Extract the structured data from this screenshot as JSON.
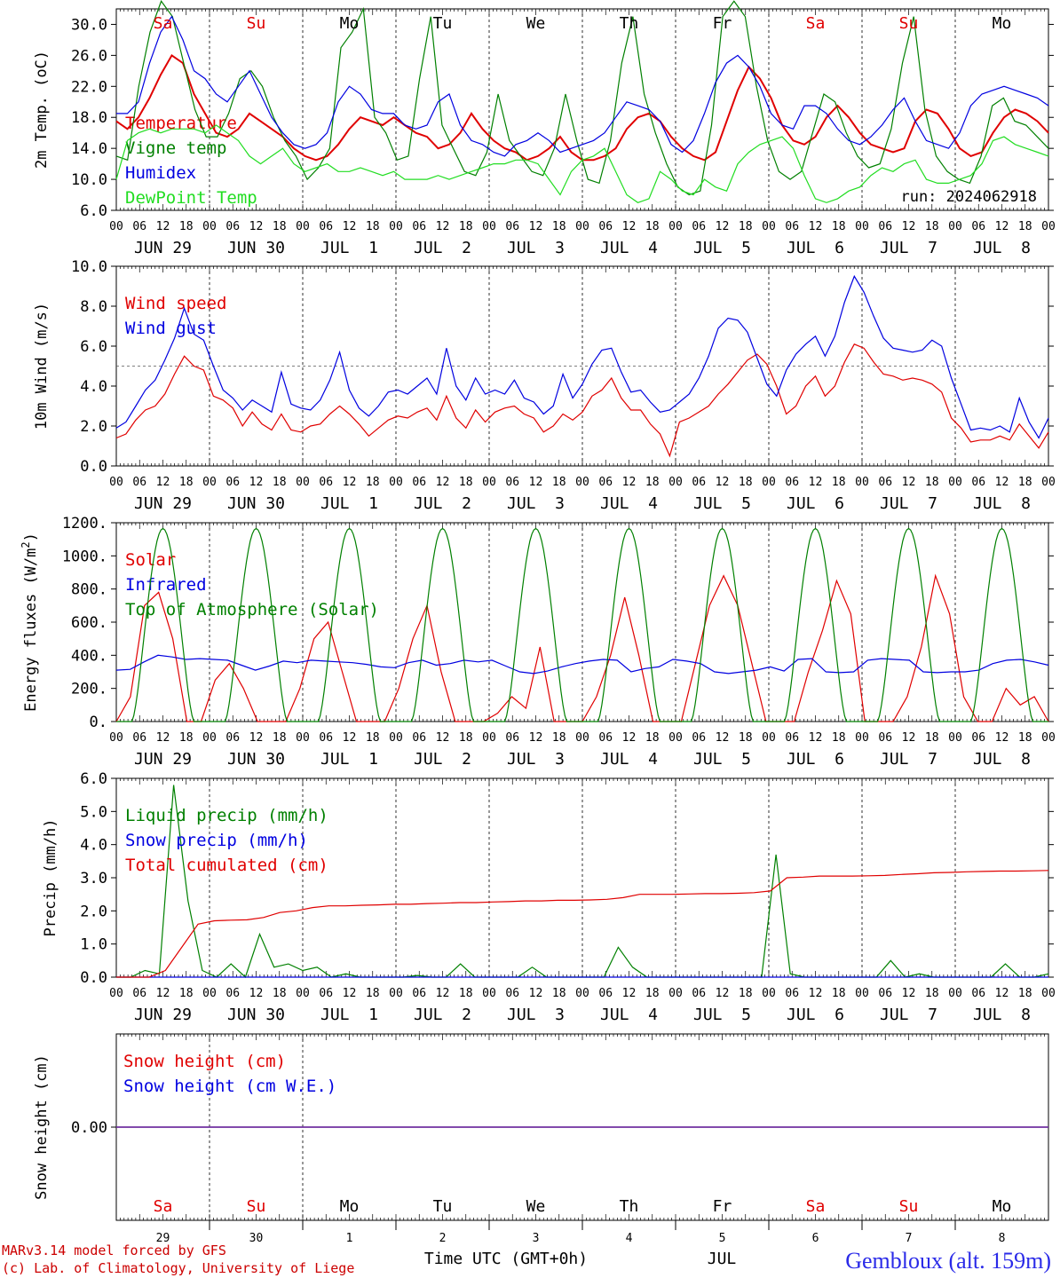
{
  "run_label": "run: 2024062918",
  "dates": [
    "JUN 29",
    "JUN 30",
    "JUL  1",
    "JUL  2",
    "JUL  3",
    "JUL  4",
    "JUL  5",
    "JUL  6",
    "JUL  7",
    "JUL  8"
  ],
  "weekdays": [
    "Sa",
    "Su",
    "Mo",
    "Tu",
    "We",
    "Th",
    "Fr",
    "Sa",
    "Su",
    "Mo"
  ],
  "weekend_flags": [
    true,
    true,
    false,
    false,
    false,
    false,
    false,
    true,
    true,
    false
  ],
  "day_numbers": [
    "29",
    "30",
    "1",
    "2",
    "3",
    "4",
    "5",
    "6",
    "7",
    "8"
  ],
  "hour_labels": [
    "00",
    "06",
    "12",
    "18"
  ],
  "x_axis_title": "Time UTC (GMT+0h)",
  "month_label": "JUL",
  "station": "Gembloux (alt. 159m)",
  "footer_lines": [
    "MARv3.14 model forced by GFS",
    "(c) Lab. of Climatology, University of Liege"
  ],
  "colors": {
    "red": "#e00000",
    "green": "#008000",
    "blue": "#0000e0",
    "lime": "#22dd22",
    "purple": "#7030a0"
  },
  "chart_data": [
    {
      "type": "line",
      "ylabel": "2m Temp. (oC)",
      "ylim": [
        6,
        32
      ],
      "yticks": [
        6,
        10,
        14,
        18,
        22,
        26,
        30
      ],
      "ytick_labels": [
        "6.0",
        "10.0",
        "14.0",
        "18.0",
        "22.0",
        "26.0",
        "30.0"
      ],
      "legend_placement": "top-left",
      "series": [
        {
          "name": "Temperature",
          "color": "red",
          "values": [
            17.5,
            16.5,
            18,
            20.5,
            23.5,
            26,
            25,
            21,
            18.5,
            16,
            15.5,
            16.5,
            18.5,
            17.5,
            16.5,
            15.5,
            14,
            13,
            12.5,
            13,
            14.5,
            16.5,
            18,
            17.5,
            17,
            18,
            17,
            16,
            15.5,
            14,
            14.5,
            16,
            18.5,
            16.5,
            15,
            14,
            13.5,
            12.5,
            13,
            14,
            15.5,
            13.5,
            12.5,
            12.5,
            13,
            14,
            16.5,
            18,
            18.5,
            17.5,
            15.5,
            14,
            13,
            12.5,
            13.5,
            17.5,
            21.5,
            24.5,
            23,
            20.5,
            17,
            15,
            14.5,
            15.5,
            18,
            19.5,
            18,
            16,
            14.5,
            14,
            13.5,
            14,
            17.5,
            19,
            18.5,
            16.5,
            14,
            13,
            13.5,
            16,
            18,
            19,
            18.5,
            17.5,
            16
          ]
        },
        {
          "name": "Vigne temp",
          "color": "green",
          "values": [
            13,
            12.5,
            22,
            29,
            33,
            31,
            25,
            19,
            15.5,
            15.5,
            18.5,
            23,
            24,
            22,
            18,
            15,
            13,
            10,
            11.5,
            14,
            27,
            29,
            32,
            18,
            16,
            12.5,
            13,
            23,
            31,
            17,
            14,
            11,
            10.5,
            13.5,
            21,
            15,
            13,
            11,
            10.5,
            14,
            21,
            15,
            10,
            9.5,
            15,
            25,
            31,
            21,
            16,
            12,
            9,
            8,
            8.5,
            17,
            31,
            33,
            31,
            22,
            15,
            11,
            10,
            11,
            16,
            21,
            20,
            16,
            13,
            11.5,
            12,
            16.5,
            25,
            31,
            19,
            13,
            11,
            10,
            9.5,
            13,
            19.5,
            20.5,
            17.5,
            17,
            15.5,
            14
          ]
        },
        {
          "name": "Humidex",
          "color": "blue",
          "values": [
            18.5,
            18.5,
            20,
            25,
            29,
            31,
            28,
            24,
            23,
            21,
            20,
            22,
            24,
            21,
            18,
            16,
            14.5,
            14,
            14.5,
            16,
            20,
            22,
            21,
            19,
            18.5,
            18.5,
            17,
            16.5,
            17,
            20,
            21,
            17,
            15,
            14.5,
            13.5,
            13,
            14.5,
            15,
            16,
            15,
            13.5,
            14,
            14.5,
            15,
            16,
            18,
            20,
            19.5,
            19,
            17.5,
            14.5,
            13.5,
            15,
            18.5,
            22.5,
            25,
            26,
            24.5,
            22,
            18.5,
            17,
            16.5,
            19.5,
            19.5,
            18.5,
            16.5,
            15,
            14.5,
            15.5,
            17,
            19,
            20.5,
            17.5,
            15,
            14.5,
            14,
            16,
            19.5,
            21,
            21.5,
            22,
            21.5,
            21,
            20.5,
            19.5
          ]
        },
        {
          "name": "DewPoint Temp",
          "color": "lime",
          "values": [
            10,
            15,
            16,
            16.5,
            16,
            16.5,
            16.5,
            16.5,
            16,
            17,
            16,
            15,
            13,
            12,
            13,
            14,
            12,
            11,
            11.5,
            12,
            11,
            11,
            11.5,
            11,
            10.5,
            11,
            10,
            10,
            10,
            10.5,
            10,
            10.5,
            11,
            11.5,
            12,
            12,
            12.5,
            12.5,
            12,
            10,
            8,
            11,
            12.5,
            13,
            14,
            11,
            8,
            7,
            7.5,
            11,
            10,
            8.5,
            8,
            10,
            9,
            8.5,
            12,
            13.5,
            14.5,
            15,
            15.5,
            14,
            10.5,
            7.5,
            7,
            7.5,
            8.5,
            9,
            10.5,
            11.5,
            11,
            12,
            12.5,
            10,
            9.5,
            9.5,
            10,
            10.5,
            12,
            15,
            15.5,
            14.5,
            14,
            13.5,
            13
          ]
        }
      ]
    },
    {
      "type": "line",
      "ylabel": "10m Wind (m/s)",
      "ylim": [
        0,
        10
      ],
      "yticks": [
        0,
        2,
        4,
        6,
        8,
        10
      ],
      "ytick_labels": [
        "0.0",
        "2.0",
        "4.0",
        "6.0",
        "8.0",
        "10.0"
      ],
      "reference_line": 5,
      "legend_placement": "top-left",
      "series": [
        {
          "name": "Wind speed",
          "color": "red",
          "values": [
            1.4,
            1.6,
            2.3,
            2.8,
            3,
            3.6,
            4.6,
            5.5,
            5,
            4.8,
            3.5,
            3.3,
            2.9,
            2,
            2.7,
            2.1,
            1.8,
            2.6,
            1.8,
            1.7,
            2,
            2.1,
            2.6,
            3,
            2.6,
            2.1,
            1.5,
            1.9,
            2.3,
            2.5,
            2.4,
            2.7,
            2.9,
            2.3,
            3.5,
            2.4,
            1.9,
            2.8,
            2.2,
            2.7,
            2.9,
            3,
            2.6,
            2.4,
            1.7,
            2,
            2.6,
            2.3,
            2.7,
            3.5,
            3.8,
            4.4,
            3.4,
            2.8,
            2.8,
            2.1,
            1.6,
            0.5,
            2.2,
            2.4,
            2.7,
            3,
            3.6,
            4.1,
            4.7,
            5.3,
            5.6,
            5.1,
            4,
            2.6,
            3,
            4,
            4.5,
            3.5,
            4,
            5.2,
            6.1,
            5.9,
            5.2,
            4.6,
            4.5,
            4.3,
            4.4,
            4.3,
            4.1,
            3.7,
            2.4,
            1.9,
            1.2,
            1.3,
            1.3,
            1.5,
            1.3,
            2.1,
            1.5,
            0.9,
            1.7
          ]
        },
        {
          "name": "Wind gust",
          "color": "blue",
          "values": [
            1.9,
            2.2,
            3,
            3.8,
            4.3,
            5.3,
            6.4,
            7.9,
            6.6,
            6.3,
            5,
            3.8,
            3.4,
            2.8,
            3.3,
            3,
            2.7,
            4.7,
            3.1,
            2.9,
            2.8,
            3.3,
            4.3,
            5.7,
            3.8,
            2.9,
            2.5,
            3,
            3.7,
            3.8,
            3.6,
            4,
            4.4,
            3.6,
            5.9,
            4,
            3.3,
            4.4,
            3.6,
            3.8,
            3.6,
            4.3,
            3.4,
            3.2,
            2.6,
            3,
            4.6,
            3.4,
            4.1,
            5.1,
            5.8,
            5.9,
            4.7,
            3.7,
            3.8,
            3.2,
            2.7,
            2.8,
            3.2,
            3.6,
            4.4,
            5.5,
            6.9,
            7.4,
            7.3,
            6.7,
            5.4,
            4.1,
            3.5,
            4.8,
            5.6,
            6.1,
            6.5,
            5.5,
            6.5,
            8.2,
            9.5,
            8.7,
            7.5,
            6.4,
            5.9,
            5.8,
            5.7,
            5.8,
            6.3,
            6,
            4.4,
            3.1,
            1.8,
            1.9,
            1.8,
            2,
            1.7,
            3.4,
            2.2,
            1.4,
            2.4
          ]
        }
      ]
    },
    {
      "type": "line",
      "ylabel": "Energy fluxes (W/m2)",
      "ylim": [
        0,
        1200
      ],
      "yticks": [
        0,
        200,
        400,
        600,
        800,
        1000,
        1200
      ],
      "ytick_labels": [
        "0.",
        "200.",
        "400.",
        "600.",
        "800.",
        "1000.",
        "1200."
      ],
      "legend_placement": "top-left",
      "series": [
        {
          "name": "Solar",
          "color": "red",
          "values": [
            0,
            150,
            700,
            780,
            500,
            0,
            0,
            250,
            350,
            200,
            0,
            0,
            0,
            200,
            500,
            600,
            300,
            0,
            0,
            0,
            200,
            500,
            700,
            300,
            0,
            0,
            0,
            50,
            150,
            80,
            450,
            0,
            0,
            0,
            150,
            400,
            750,
            400,
            0,
            0,
            0,
            350,
            700,
            880,
            700,
            350,
            0,
            0,
            0,
            300,
            550,
            850,
            650,
            0,
            0,
            0,
            150,
            450,
            880,
            650,
            150,
            0,
            0,
            200,
            100,
            150,
            0
          ]
        },
        {
          "name": "Infrared",
          "color": "blue",
          "values": [
            310,
            315,
            360,
            400,
            390,
            375,
            380,
            375,
            370,
            340,
            310,
            335,
            365,
            355,
            370,
            365,
            360,
            355,
            345,
            330,
            325,
            355,
            370,
            340,
            350,
            370,
            360,
            370,
            335,
            300,
            290,
            305,
            330,
            350,
            365,
            375,
            370,
            300,
            320,
            330,
            375,
            365,
            350,
            300,
            290,
            300,
            310,
            330,
            305,
            375,
            380,
            300,
            295,
            300,
            370,
            380,
            375,
            370,
            300,
            295,
            300,
            300,
            310,
            350,
            370,
            375,
            360,
            340
          ]
        },
        {
          "name": "Top of Atmosphere (Solar)",
          "color": "green",
          "values": [
            1165
          ]
        }
      ]
    },
    {
      "type": "line",
      "ylabel": "Precip (mm/h)",
      "ylim": [
        0,
        6
      ],
      "yticks": [
        0,
        1,
        2,
        3,
        4,
        5,
        6
      ],
      "ytick_labels": [
        "0.0",
        "1.0",
        "2.0",
        "3.0",
        "4.0",
        "5.0",
        "6.0"
      ],
      "legend_placement": "top-left",
      "series": [
        {
          "name": "Liquid precip (mm/h)",
          "color": "green",
          "values": [
            0,
            0,
            0.2,
            0.1,
            5.8,
            2.3,
            0.2,
            0,
            0.4,
            0,
            1.3,
            0.3,
            0.4,
            0.2,
            0.3,
            0,
            0.1,
            0,
            0,
            0,
            0,
            0.05,
            0,
            0,
            0.4,
            0,
            0,
            0,
            0,
            0.3,
            0,
            0,
            0,
            0,
            0,
            0.9,
            0.3,
            0,
            0,
            0,
            0,
            0,
            0,
            0,
            0,
            0,
            3.7,
            0.1,
            0,
            0,
            0,
            0,
            0,
            0,
            0.5,
            0,
            0.1,
            0,
            0,
            0,
            0,
            0,
            0.4,
            0,
            0,
            0.1
          ]
        },
        {
          "name": "Snow precip (mm/h)",
          "color": "blue",
          "values": [
            0
          ]
        },
        {
          "name": "Total cumulated (cm)",
          "color": "red",
          "values": [
            0,
            0,
            0,
            0.2,
            0.9,
            1.6,
            1.7,
            1.72,
            1.73,
            1.8,
            1.95,
            2.0,
            2.1,
            2.15,
            2.15,
            2.17,
            2.18,
            2.2,
            2.2,
            2.22,
            2.23,
            2.25,
            2.25,
            2.27,
            2.28,
            2.3,
            2.3,
            2.32,
            2.32,
            2.33,
            2.35,
            2.4,
            2.5,
            2.5,
            2.5,
            2.51,
            2.52,
            2.52,
            2.53,
            2.55,
            2.6,
            3.0,
            3.02,
            3.05,
            3.05,
            3.05,
            3.06,
            3.07,
            3.1,
            3.12,
            3.15,
            3.16,
            3.18,
            3.19,
            3.2,
            3.2,
            3.21,
            3.22
          ]
        }
      ]
    },
    {
      "type": "line",
      "ylabel": "Snow height (cm)",
      "ytick_labels": [
        "0.00"
      ],
      "legend_placement": "top-left",
      "series": [
        {
          "name": "Snow height (cm)",
          "color": "red",
          "values": [
            0
          ]
        },
        {
          "name": "Snow height (cm W.E.)",
          "color": "blue",
          "values": [
            0
          ]
        }
      ]
    }
  ]
}
